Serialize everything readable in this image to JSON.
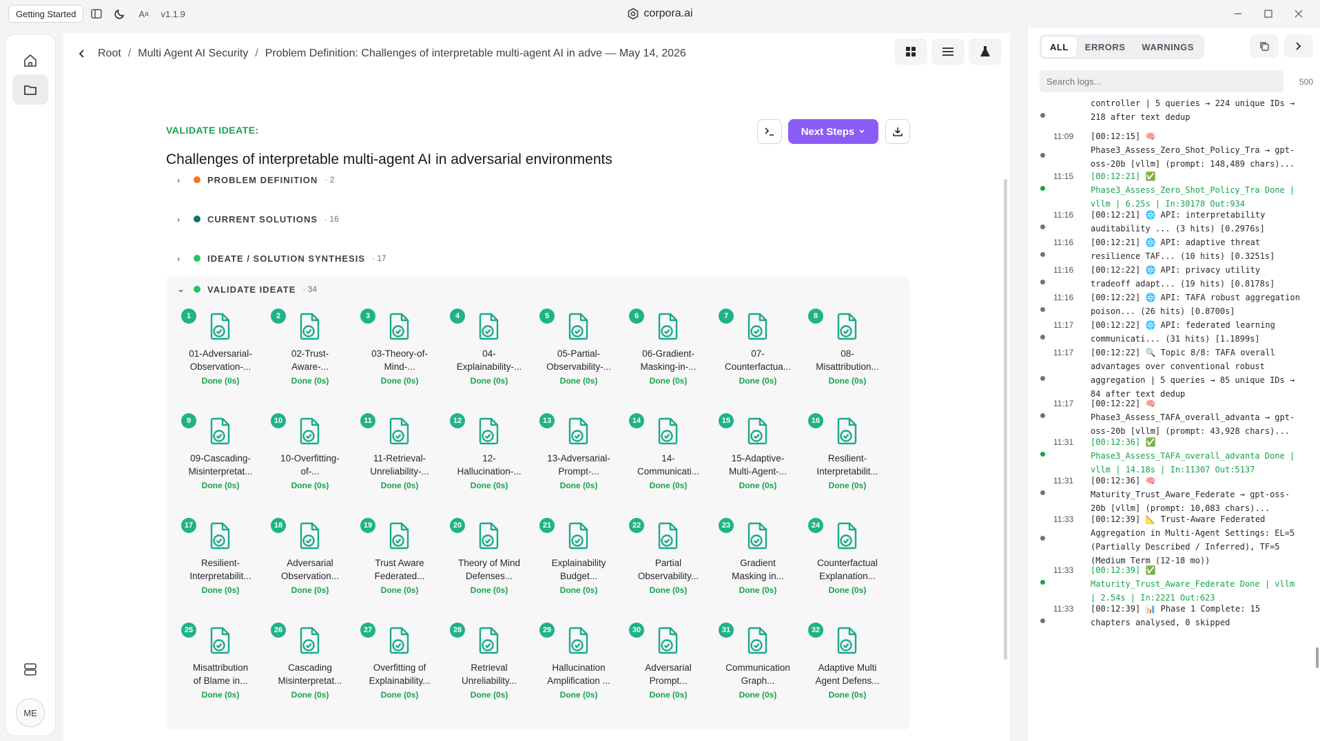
{
  "titlebar": {
    "getting_started": "Getting Started",
    "version": "v1.1.9",
    "app_title": "corpora.ai"
  },
  "leftbar": {
    "avatar": "ME"
  },
  "breadcrumb": {
    "items": [
      "Root",
      "Multi Agent AI Security",
      "Problem Definition: Challenges of interpretable multi-agent AI in adve — May 14, 2026"
    ]
  },
  "page": {
    "kicker": "VALIDATE IDEATE:",
    "title": "Challenges of interpretable multi-agent AI in adversarial environments",
    "next_steps": "Next Steps"
  },
  "sections": [
    {
      "label": "PROBLEM DEFINITION",
      "count": "· 2",
      "color": "#f97316"
    },
    {
      "label": "CURRENT SOLUTIONS",
      "count": "· 16",
      "color": "#0f766e"
    },
    {
      "label": "IDEATE / SOLUTION SYNTHESIS",
      "count": "· 17",
      "color": "#22c55e"
    },
    {
      "label": "VALIDATE IDEATE",
      "count": "· 34",
      "color": "#22c55e"
    }
  ],
  "cards": [
    {
      "n": "1",
      "l1": "01-Adversarial-",
      "l2": "Observation-...",
      "status": "Done (0s)"
    },
    {
      "n": "2",
      "l1": "02-Trust-",
      "l2": "Aware-...",
      "status": "Done (0s)"
    },
    {
      "n": "3",
      "l1": "03-Theory-of-",
      "l2": "Mind-...",
      "status": "Done (0s)"
    },
    {
      "n": "4",
      "l1": "04-",
      "l2": "Explainability-...",
      "status": "Done (0s)"
    },
    {
      "n": "5",
      "l1": "05-Partial-",
      "l2": "Observability-...",
      "status": "Done (0s)"
    },
    {
      "n": "6",
      "l1": "06-Gradient-",
      "l2": "Masking-in-...",
      "status": "Done (0s)"
    },
    {
      "n": "7",
      "l1": "07-",
      "l2": "Counterfactua...",
      "status": "Done (0s)"
    },
    {
      "n": "8",
      "l1": "08-",
      "l2": "Misattribution...",
      "status": "Done (0s)"
    },
    {
      "n": "9",
      "l1": "09-Cascading-",
      "l2": "Misinterpretat...",
      "status": "Done (0s)"
    },
    {
      "n": "10",
      "l1": "10-Overfitting-",
      "l2": "of-...",
      "status": "Done (0s)"
    },
    {
      "n": "11",
      "l1": "11-Retrieval-",
      "l2": "Unreliability-...",
      "status": "Done (0s)"
    },
    {
      "n": "12",
      "l1": "12-",
      "l2": "Hallucination-...",
      "status": "Done (0s)"
    },
    {
      "n": "13",
      "l1": "13-Adversarial-",
      "l2": "Prompt-...",
      "status": "Done (0s)"
    },
    {
      "n": "14",
      "l1": "14-",
      "l2": "Communicati...",
      "status": "Done (0s)"
    },
    {
      "n": "15",
      "l1": "15-Adaptive-",
      "l2": "Multi-Agent-...",
      "status": "Done (0s)"
    },
    {
      "n": "16",
      "l1": "Resilient-",
      "l2": "Interpretabilit...",
      "status": "Done (0s)"
    },
    {
      "n": "17",
      "l1": "Resilient-",
      "l2": "Interpretabilit...",
      "status": "Done (0s)"
    },
    {
      "n": "18",
      "l1": "Adversarial",
      "l2": "Observation...",
      "status": "Done (0s)"
    },
    {
      "n": "19",
      "l1": "Trust Aware",
      "l2": "Federated...",
      "status": "Done (0s)"
    },
    {
      "n": "20",
      "l1": "Theory of Mind",
      "l2": "Defenses...",
      "status": "Done (0s)"
    },
    {
      "n": "21",
      "l1": "Explainability",
      "l2": "Budget...",
      "status": "Done (0s)"
    },
    {
      "n": "22",
      "l1": "Partial",
      "l2": "Observability...",
      "status": "Done (0s)"
    },
    {
      "n": "23",
      "l1": "Gradient",
      "l2": "Masking in...",
      "status": "Done (0s)"
    },
    {
      "n": "24",
      "l1": "Counterfactual",
      "l2": "Explanation...",
      "status": "Done (0s)"
    },
    {
      "n": "25",
      "l1": "Misattribution",
      "l2": "of Blame in...",
      "status": "Done (0s)"
    },
    {
      "n": "26",
      "l1": "Cascading",
      "l2": "Misinterpretat...",
      "status": "Done (0s)"
    },
    {
      "n": "27",
      "l1": "Overfitting of",
      "l2": "Explainability...",
      "status": "Done (0s)"
    },
    {
      "n": "28",
      "l1": "Retrieval",
      "l2": "Unreliability...",
      "status": "Done (0s)"
    },
    {
      "n": "29",
      "l1": "Hallucination",
      "l2": "Amplification ...",
      "status": "Done (0s)"
    },
    {
      "n": "30",
      "l1": "Adversarial",
      "l2": "Prompt...",
      "status": "Done (0s)"
    },
    {
      "n": "31",
      "l1": "Communication",
      "l2": "Graph...",
      "status": "Done (0s)"
    },
    {
      "n": "32",
      "l1": "Adaptive Multi",
      "l2": "Agent Defens...",
      "status": "Done (0s)"
    }
  ],
  "logs": {
    "tabs": [
      "ALL",
      "ERRORS",
      "WARNINGS"
    ],
    "search_placeholder": "Search logs...",
    "count": "500",
    "entries": [
      {
        "time": "",
        "text": "controller | 5 queries → 224 unique IDs → 218 after text dedup",
        "ok": false
      },
      {
        "time": "11:09",
        "text": "[00:12:15] 🧠 Phase3_Assess_Zero_Shot_Policy_Tra → gpt-oss-20b [vllm] (prompt: 148,489 chars)...",
        "ok": false
      },
      {
        "time": "11:15",
        "text": "[00:12:21] ✅ Phase3_Assess_Zero_Shot_Policy_Tra Done | vllm | 6.25s | In:30178 Out:934",
        "ok": true
      },
      {
        "time": "11:16",
        "text": "[00:12:21] 🌐 API: interpretability auditability ... (3 hits) [0.2976s]",
        "ok": false
      },
      {
        "time": "11:16",
        "text": "[00:12:21] 🌐 API: adaptive threat resilience TAF... (10 hits) [0.3251s]",
        "ok": false
      },
      {
        "time": "11:16",
        "text": "[00:12:22] 🌐 API: privacy utility tradeoff adapt... (19 hits) [0.8178s]",
        "ok": false
      },
      {
        "time": "11:16",
        "text": "[00:12:22] 🌐 API: TAFA robust aggregation poison... (26 hits) [0.8700s]",
        "ok": false
      },
      {
        "time": "11:17",
        "text": "[00:12:22] 🌐 API: federated learning communicati... (31 hits) [1.1899s]",
        "ok": false
      },
      {
        "time": "11:17",
        "text": "[00:12:22] 🔍 Topic 8/8: TAFA overall advantages over conventional robust aggregation | 5 queries → 85 unique IDs → 84 after text dedup",
        "ok": false
      },
      {
        "time": "11:17",
        "text": "[00:12:22] 🧠 Phase3_Assess_TAFA_overall_advanta → gpt-oss-20b [vllm] (prompt: 43,928 chars)...",
        "ok": false
      },
      {
        "time": "11:31",
        "text": "[00:12:36] ✅ Phase3_Assess_TAFA_overall_advanta Done | vllm | 14.18s | In:11307 Out:5137",
        "ok": true
      },
      {
        "time": "11:31",
        "text": "[00:12:36] 🧠 Maturity_Trust_Aware_Federate → gpt-oss-20b [vllm] (prompt: 10,083 chars)...",
        "ok": false
      },
      {
        "time": "11:33",
        "text": "[00:12:39] 📐 Trust-Aware Federated Aggregation in Multi-Agent Settings: EL=5 (Partially Described / Inferred), TF=5 (Medium Term (12-18 mo))",
        "ok": false
      },
      {
        "time": "11:33",
        "text": "[00:12:39] ✅ Maturity_Trust_Aware_Federate Done | vllm | 2.54s | In:2221 Out:623",
        "ok": true
      },
      {
        "time": "11:33",
        "text": "[00:12:39] 📊 Phase 1 Complete: 15 chapters analysed, 0 skipped",
        "ok": false
      }
    ]
  }
}
